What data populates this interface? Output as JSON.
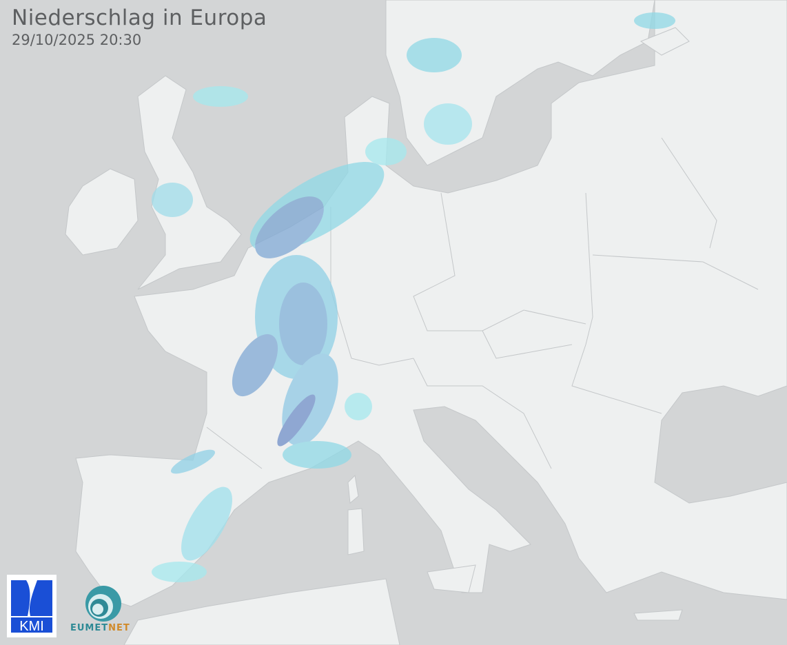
{
  "header": {
    "title": "Niederschlag in Europa",
    "timestamp": "29/10/2025 20:30"
  },
  "colors": {
    "sea": "#d3d5d6",
    "land": "#eef0f0",
    "border": "#b9bcbe",
    "precip_light": "#8fe3ea",
    "precip_medium": "#7fb8d8",
    "precip_heavy": "#6f8fc8"
  },
  "logos": {
    "kmi": "KMI",
    "eumetnet_a": "EUMET",
    "eumetnet_b": "NET"
  }
}
